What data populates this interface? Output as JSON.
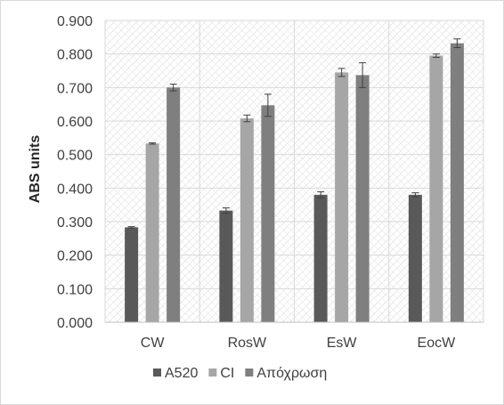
{
  "chart_data": {
    "type": "bar",
    "ylabel": "ABS units",
    "xlabel": "",
    "ylim": [
      0,
      0.9
    ],
    "ytick_step": 0.1,
    "ytick_labels": [
      "0.000",
      "0.100",
      "0.200",
      "0.300",
      "0.400",
      "0.500",
      "0.600",
      "0.700",
      "0.800",
      "0.900"
    ],
    "categories": [
      "CW",
      "RosW",
      "EsW",
      "EocW"
    ],
    "grid": true,
    "legend_position": "bottom",
    "series": [
      {
        "name": "A520",
        "color": "#595959",
        "values": [
          0.283,
          0.333,
          0.38,
          0.38
        ],
        "errors": [
          0.002,
          0.008,
          0.009,
          0.006
        ]
      },
      {
        "name": "CI",
        "color": "#a6a6a6",
        "values": [
          0.533,
          0.608,
          0.745,
          0.795
        ],
        "errors": [
          0.002,
          0.01,
          0.012,
          0.005
        ]
      },
      {
        "name": "Απόχρωση",
        "color": "#7f7f7f",
        "values": [
          0.7,
          0.647,
          0.737,
          0.832
        ],
        "errors": [
          0.01,
          0.033,
          0.037,
          0.013
        ]
      }
    ]
  }
}
